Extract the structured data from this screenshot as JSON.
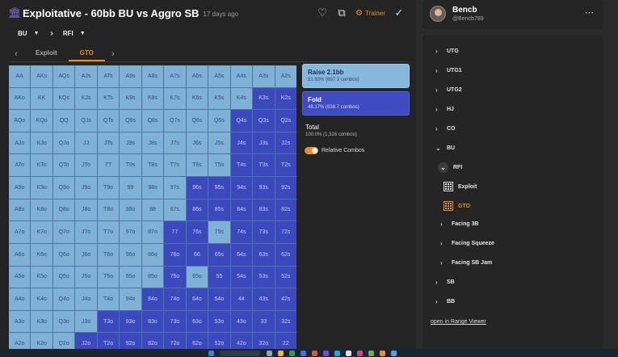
{
  "header": {
    "title": "Exploitative - 60bb BU vs Aggro SB",
    "ago": "17 days ago",
    "trainer_label": "Trainer",
    "icons": [
      "heart-icon",
      "share-icon",
      "trainer-icon",
      "check-icon"
    ]
  },
  "breadcrumb": [
    {
      "label": "BU"
    },
    {
      "label": "RFI"
    }
  ],
  "tabs": [
    {
      "label": "Exploit"
    },
    {
      "label": "GTO"
    }
  ],
  "grid": {
    "hands": [
      [
        "AA",
        "AKs",
        "AQs",
        "AJs",
        "ATs",
        "A9s",
        "A8s",
        "A7s",
        "A6s",
        "A5s",
        "A4s",
        "A3s",
        "A2s"
      ],
      [
        "AKo",
        "KK",
        "KQs",
        "KJs",
        "KTs",
        "K9s",
        "K8s",
        "K7s",
        "K6s",
        "K5s",
        "K4s",
        "K3s",
        "K2s"
      ],
      [
        "AQo",
        "KQo",
        "QQ",
        "QJs",
        "QTs",
        "Q9s",
        "Q8s",
        "Q7s",
        "Q6s",
        "Q5s",
        "Q4s",
        "Q3s",
        "Q2s"
      ],
      [
        "AJo",
        "KJo",
        "QJo",
        "JJ",
        "JTs",
        "J9s",
        "J8s",
        "J7s",
        "J6s",
        "J5s",
        "J4s",
        "J3s",
        "J2s"
      ],
      [
        "ATo",
        "KTo",
        "QTo",
        "JTo",
        "TT",
        "T9s",
        "T8s",
        "T7s",
        "T6s",
        "T5s",
        "T4s",
        "T3s",
        "T2s"
      ],
      [
        "A9o",
        "K9o",
        "Q9o",
        "J9o",
        "T9o",
        "99",
        "98s",
        "97s",
        "96s",
        "95s",
        "94s",
        "93s",
        "92s"
      ],
      [
        "A8o",
        "K8o",
        "Q8o",
        "J8o",
        "T8o",
        "98o",
        "88",
        "87s",
        "86s",
        "85s",
        "84s",
        "83s",
        "82s"
      ],
      [
        "A7o",
        "K7o",
        "Q7o",
        "J7o",
        "T7o",
        "97o",
        "87o",
        "77",
        "76s",
        "75s",
        "74s",
        "73s",
        "72s"
      ],
      [
        "A6o",
        "K6o",
        "Q6o",
        "J6o",
        "T6o",
        "96o",
        "86o",
        "76o",
        "66",
        "65s",
        "64s",
        "63s",
        "62s"
      ],
      [
        "A5o",
        "K5o",
        "Q5o",
        "J5o",
        "T5o",
        "95o",
        "85o",
        "75o",
        "65o",
        "55",
        "54s",
        "53s",
        "52s"
      ],
      [
        "A4o",
        "K4o",
        "Q4o",
        "J4o",
        "T4o",
        "94o",
        "84o",
        "74o",
        "64o",
        "54o",
        "44",
        "43s",
        "42s"
      ],
      [
        "A3o",
        "K3o",
        "Q3o",
        "J3o",
        "T3o",
        "93o",
        "83o",
        "73o",
        "63o",
        "53o",
        "43o",
        "33",
        "32s"
      ],
      [
        "A2o",
        "K2o",
        "Q2o",
        "J2o",
        "T2o",
        "92o",
        "82o",
        "72o",
        "62o",
        "52o",
        "42o",
        "32o",
        "22"
      ]
    ],
    "fold_from_col": [
      13,
      13,
      13,
      12,
      11,
      11,
      10,
      6,
      5,
      4,
      2,
      1,
      1
    ],
    "partial_col": [
      null,
      null,
      null,
      null,
      null,
      null,
      null,
      [
        2,
        4,
        6
      ],
      [
        9
      ],
      [
        4,
        7
      ],
      null,
      null,
      null
    ],
    "colors": {
      "raise": "#7fb0d6",
      "fold": "#3b49bd"
    }
  },
  "actions": {
    "raise": {
      "name": "Raise 2.1bb",
      "sub": "51.83% (687.3 combos)"
    },
    "fold": {
      "name": "Fold",
      "sub": "48.17% (638.7 combos)"
    },
    "total": {
      "name": "Total",
      "sub": "100.0% (1,326 combos)"
    },
    "relative_combos": "Relative Combos"
  },
  "profile": {
    "name": "Bencb",
    "handle": "@Bencb789"
  },
  "tree": {
    "utg": "UTG",
    "utg1": "UTG1",
    "utg2": "UTG2",
    "hj": "HJ",
    "co": "CO",
    "bu": "BU",
    "rfi": "RFI",
    "exploit": "Exploit",
    "gto": "GTO",
    "facing_3b": "Facing 3B",
    "facing_squeeze": "Facing Squeeze",
    "facing_sb_jam": "Facing SB Jam",
    "sb": "SB",
    "bb": "BB",
    "range_viewer_link": "open in Range Viewer"
  }
}
